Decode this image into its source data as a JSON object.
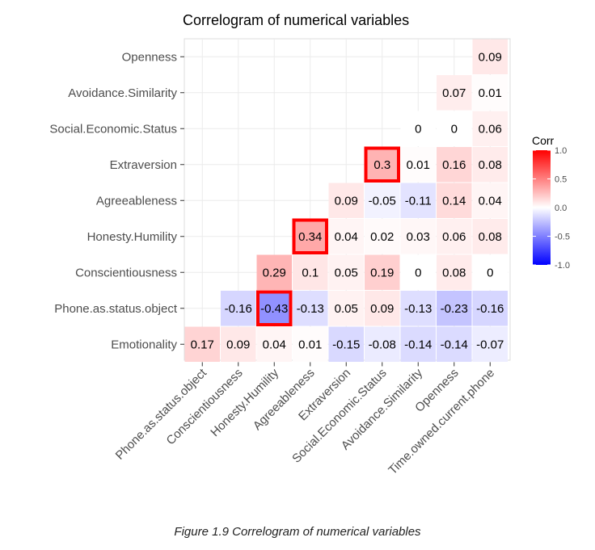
{
  "chart_data": {
    "type": "heatmap",
    "title": "Correlogram of numerical variables",
    "x_categories": [
      "Phone.as.status.object",
      "Conscientiousness",
      "Honesty.Humility",
      "Agreeableness",
      "Extraversion",
      "Social.Economic.Status",
      "Avoidance.Similarity",
      "Openness",
      "Time.owned.current.phone"
    ],
    "y_categories": [
      "Openness",
      "Avoidance.Similarity",
      "Social.Economic.Status",
      "Extraversion",
      "Agreeableness",
      "Honesty.Humility",
      "Conscientiousness",
      "Phone.as.status.object",
      "Emotionality"
    ],
    "values": [
      [
        null,
        null,
        null,
        null,
        null,
        null,
        null,
        null,
        0.09
      ],
      [
        null,
        null,
        null,
        null,
        null,
        null,
        null,
        0.07,
        0.01
      ],
      [
        null,
        null,
        null,
        null,
        null,
        null,
        0,
        0,
        0.06
      ],
      [
        null,
        null,
        null,
        null,
        null,
        0.3,
        0.01,
        0.16,
        0.08
      ],
      [
        null,
        null,
        null,
        null,
        0.09,
        -0.05,
        -0.11,
        0.14,
        0.04
      ],
      [
        null,
        null,
        null,
        0.34,
        0.04,
        0.02,
        0.03,
        0.06,
        0.08
      ],
      [
        null,
        null,
        0.29,
        0.1,
        0.05,
        0.19,
        0,
        0.08,
        0
      ],
      [
        null,
        -0.16,
        -0.43,
        -0.13,
        0.05,
        0.09,
        -0.13,
        -0.23,
        -0.16
      ],
      [
        0.17,
        0.09,
        0.04,
        0.01,
        -0.15,
        -0.08,
        -0.14,
        -0.14,
        -0.07
      ]
    ],
    "value_labels": [
      [
        null,
        null,
        null,
        null,
        null,
        null,
        null,
        null,
        "0.09"
      ],
      [
        null,
        null,
        null,
        null,
        null,
        null,
        null,
        "0.07",
        "0.01"
      ],
      [
        null,
        null,
        null,
        null,
        null,
        null,
        "0",
        "0",
        "0.06"
      ],
      [
        null,
        null,
        null,
        null,
        null,
        "0.3",
        "0.01",
        "0.16",
        "0.08"
      ],
      [
        null,
        null,
        null,
        null,
        "0.09",
        "-0.05",
        "-0.11",
        "0.14",
        "0.04"
      ],
      [
        null,
        null,
        null,
        "0.34",
        "0.04",
        "0.02",
        "0.03",
        "0.06",
        "0.08"
      ],
      [
        null,
        null,
        "0.29",
        "0.1",
        "0.05",
        "0.19",
        "0",
        "0.08",
        "0"
      ],
      [
        null,
        "-0.16",
        "-0.43",
        "-0.13",
        "0.05",
        "0.09",
        "-0.13",
        "-0.23",
        "-0.16"
      ],
      [
        "0.17",
        "0.09",
        "0.04",
        "0.01",
        "-0.15",
        "-0.08",
        "-0.14",
        "-0.14",
        "-0.07"
      ]
    ],
    "highlighted_cells": [
      {
        "row": "Extraversion",
        "col": "Social.Economic.Status"
      },
      {
        "row": "Honesty.Humility",
        "col": "Agreeableness"
      },
      {
        "row": "Phone.as.status.object",
        "col": "Honesty.Humility"
      }
    ],
    "highlight_color": "#ff0000",
    "legend": {
      "title": "Corr",
      "ticks": [
        "1.0",
        "0.5",
        "0.0",
        "-0.5",
        "-1.0"
      ],
      "tick_values": [
        1.0,
        0.5,
        0.0,
        -0.5,
        -1.0
      ],
      "placement": "right",
      "low_color": "#0000ff",
      "mid_color": "#ffffff",
      "high_color": "#ff0000"
    },
    "color_range": [
      -1,
      1
    ],
    "grid": true
  },
  "caption": "Figure 1.9 Correlogram of numerical variables"
}
